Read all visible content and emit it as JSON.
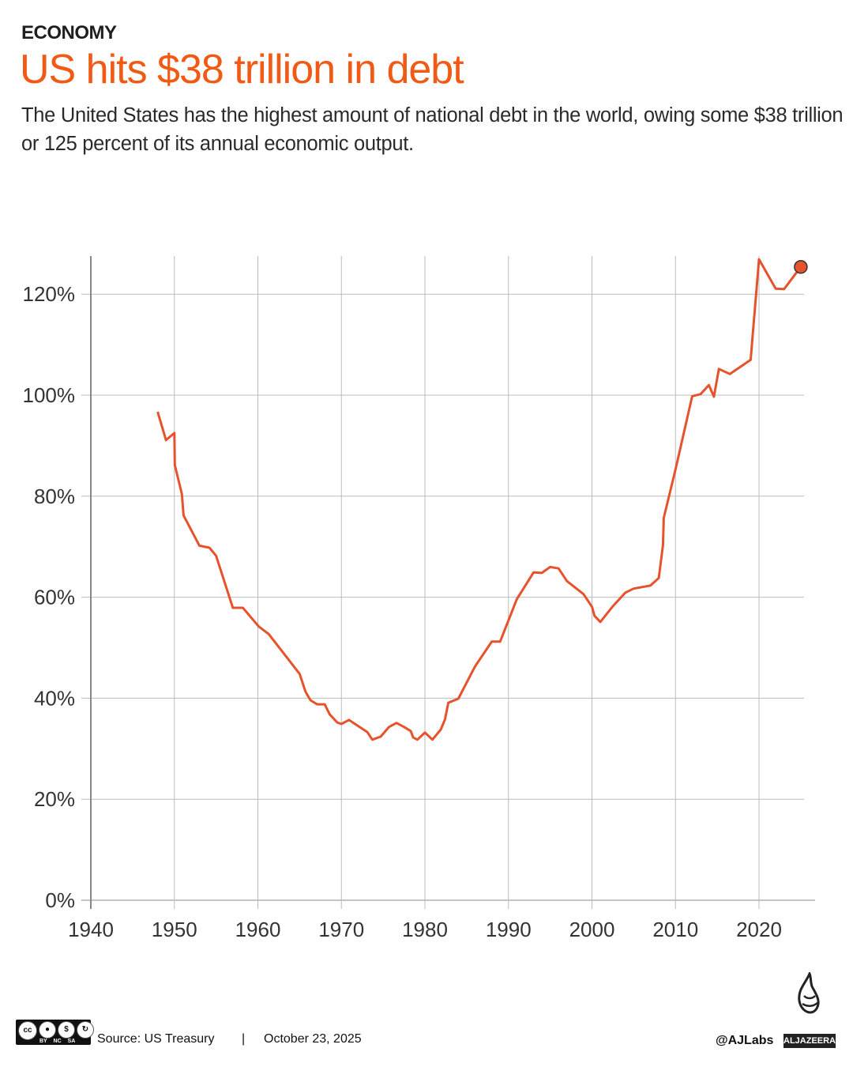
{
  "header": {
    "kicker": "ECONOMY",
    "title": "US hits $38 trillion in debt",
    "subtitle": "The United States has the highest amount of national debt in the world, owing some $38 trillion or 125 percent of its annual economic output."
  },
  "colors": {
    "accent": "#f05a14",
    "line": "#e5522b",
    "grid": "#bbbbbb"
  },
  "chart_data": {
    "type": "line",
    "title": "",
    "xlabel": "",
    "ylabel": "",
    "xlim": [
      1940,
      2026
    ],
    "ylim": [
      0,
      128
    ],
    "grid": true,
    "x_ticks": [
      "1940",
      "1950",
      "1960",
      "1970",
      "1980",
      "1990",
      "2000",
      "2010",
      "2020"
    ],
    "y_ticks": [
      "0%",
      "20%",
      "40%",
      "60%",
      "80%",
      "100%",
      "120%"
    ],
    "series": [
      {
        "x": [
          1948,
          1949,
          1950,
          1950.05,
          1950.9,
          1951.1,
          1953,
          1954.2,
          1955,
          1957,
          1958.2,
          1960.1,
          1961.3,
          1965,
          1965.7,
          1966.3,
          1967.1,
          1968,
          1968.6,
          1969.5,
          1970,
          1970.9,
          1973.1,
          1973.7,
          1974.7,
          1975.7,
          1976.6,
          1977.5,
          1978.3,
          1978.6,
          1979.1,
          1980,
          1980.9,
          1981.9,
          1982.4,
          1982.8,
          1984,
          1986,
          1988,
          1989,
          1991,
          1993,
          1994,
          1995,
          1996,
          1997,
          1999,
          2000,
          2000.3,
          2001,
          2002.5,
          2004,
          2005,
          2007,
          2008,
          2008.5,
          2008.6,
          2010,
          2012,
          2013,
          2014,
          2014.6,
          2015.2,
          2016.5,
          2019,
          2020,
          2022,
          2023,
          2025
        ],
        "y": [
          96.7,
          91.1,
          92.5,
          86.2,
          80.4,
          76.2,
          70.2,
          69.8,
          68.2,
          57.9,
          57.9,
          54.2,
          52.7,
          44.8,
          41.3,
          39.6,
          38.8,
          38.8,
          36.8,
          35.2,
          34.9,
          35.7,
          33.3,
          31.8,
          32.4,
          34.3,
          35.1,
          34.3,
          33.5,
          32.2,
          31.8,
          33.2,
          31.8,
          33.8,
          35.8,
          39.1,
          39.9,
          46.3,
          51.2,
          51.2,
          59.6,
          64.9,
          64.8,
          66.0,
          65.7,
          63.2,
          60.6,
          58.1,
          56.3,
          55.1,
          58.2,
          60.9,
          61.7,
          62.3,
          63.8,
          70.3,
          75.7,
          85.3,
          99.8,
          100.2,
          102.0,
          99.7,
          105.2,
          104.2,
          107.0,
          126.9,
          121.1,
          121.0,
          125.4
        ]
      }
    ],
    "highlight_last_point": true
  },
  "footer": {
    "license_tags": "BY NC SA",
    "license_icon": "cc",
    "source": "Source: US Treasury",
    "separator": "|",
    "date": "October 23, 2025",
    "handle": "@AJLabs",
    "brand": "ALJAZEERA"
  }
}
